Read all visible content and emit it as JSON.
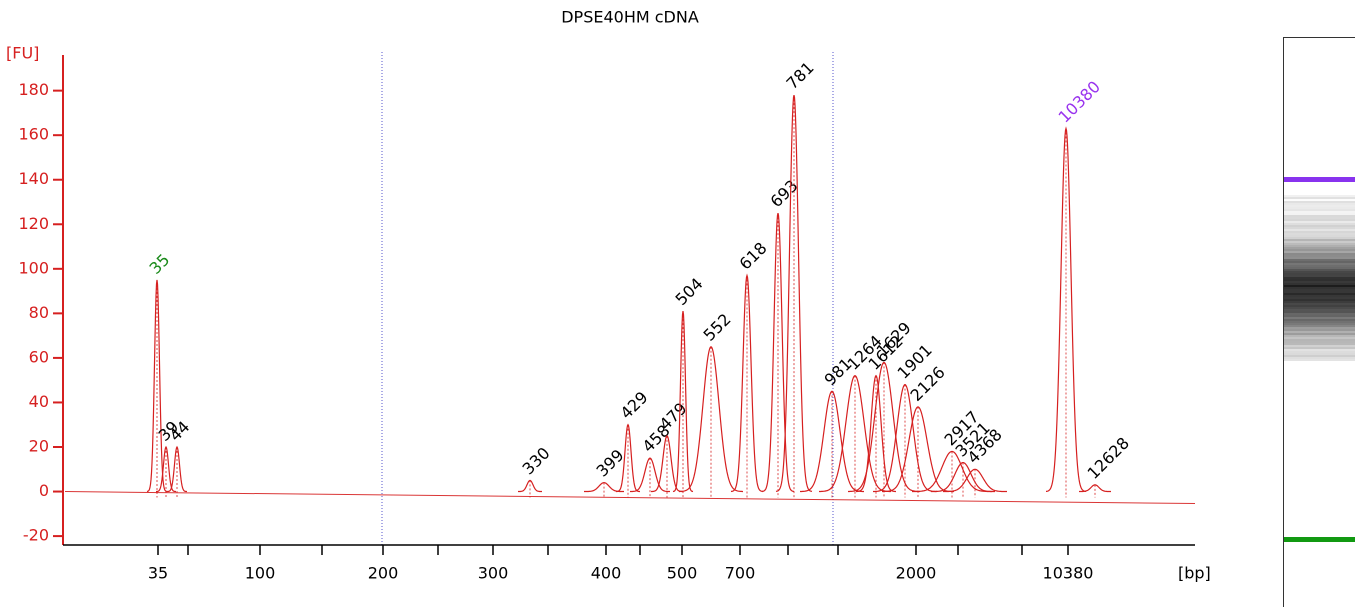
{
  "chart_data": {
    "type": "electropherogram",
    "title": "DPSE40HM cDNA",
    "y_label": "[FU]",
    "x_label": "[bp]",
    "ylim": [
      -24,
      196
    ],
    "yticks": [
      -20,
      0,
      20,
      40,
      60,
      80,
      100,
      120,
      140,
      160,
      180
    ],
    "xticks": [
      35,
      100,
      200,
      300,
      400,
      500,
      700,
      2000,
      10380
    ],
    "color": "#d62020",
    "peaks": [
      {
        "label": "35",
        "fu": 95,
        "color": "#1a8a1a"
      },
      {
        "label": "39",
        "fu": 20,
        "color": "#000000"
      },
      {
        "label": "44",
        "fu": 20,
        "color": "#000000"
      },
      {
        "label": "330",
        "fu": 5,
        "color": "#000000"
      },
      {
        "label": "399",
        "fu": 4,
        "color": "#000000"
      },
      {
        "label": "429",
        "fu": 30,
        "color": "#000000"
      },
      {
        "label": "458",
        "fu": 15,
        "color": "#000000"
      },
      {
        "label": "479",
        "fu": 25,
        "color": "#000000"
      },
      {
        "label": "504",
        "fu": 81,
        "color": "#000000"
      },
      {
        "label": "552",
        "fu": 65,
        "color": "#000000"
      },
      {
        "label": "618",
        "fu": 97,
        "color": "#000000"
      },
      {
        "label": "693",
        "fu": 125,
        "color": "#000000"
      },
      {
        "label": "781",
        "fu": 178,
        "color": "#000000"
      },
      {
        "label": "981",
        "fu": 45,
        "color": "#000000"
      },
      {
        "label": "1264",
        "fu": 52,
        "color": "#000000"
      },
      {
        "label": "1612",
        "fu": 52,
        "color": "#000000"
      },
      {
        "label": "1629",
        "fu": 58,
        "color": "#000000"
      },
      {
        "label": "1901",
        "fu": 48,
        "color": "#000000"
      },
      {
        "label": "2126",
        "fu": 38,
        "color": "#000000"
      },
      {
        "label": "2917",
        "fu": 18,
        "color": "#000000"
      },
      {
        "label": "3521",
        "fu": 13,
        "color": "#000000"
      },
      {
        "label": "4368",
        "fu": 10,
        "color": "#000000"
      },
      {
        "label": "10380",
        "fu": 163,
        "color": "#9933ee"
      },
      {
        "label": "12628",
        "fu": 3,
        "color": "#000000"
      }
    ]
  }
}
